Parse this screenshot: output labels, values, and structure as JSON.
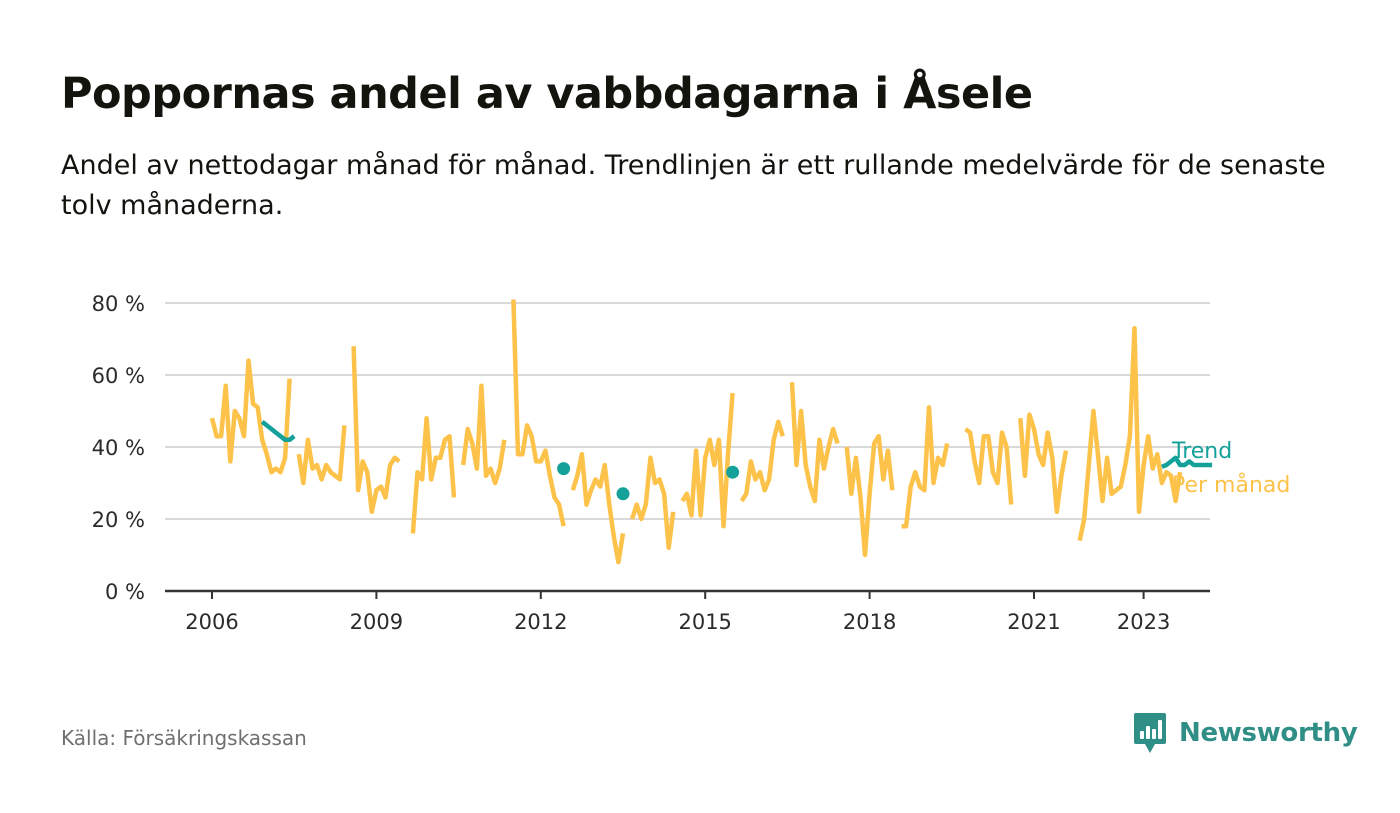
{
  "title": "Poppornas andel av vabbdagarna i Åsele",
  "subtitle": "Andel av nettodagar månad för månad. Trendlinjen är ett rullande medelvärde för de senaste tolv månaderna.",
  "source": "Källa: Försäkringskassan",
  "brand": {
    "name": "Newsworthy",
    "icon": "newsworthy-logo-icon",
    "color": "#2f8f86"
  },
  "chart_data": {
    "type": "line",
    "x_type": "date (year, month)",
    "y_unit": "%",
    "ylim": [
      0,
      80
    ],
    "y_ticks": [
      0,
      20,
      40,
      60,
      80
    ],
    "y_tick_labels": [
      "0 %",
      "20 %",
      "40 %",
      "60 %",
      "80 %"
    ],
    "x_ticks": [
      2006,
      2009,
      2012,
      2015,
      2018,
      2021,
      2023
    ],
    "x_tick_labels": [
      "2006",
      "2009",
      "2012",
      "2015",
      "2018",
      "2021",
      "2023"
    ],
    "grid": "horizontal",
    "legend_placement": "end-of-lines right",
    "series": [
      {
        "name": "Per månad",
        "color": "#fcc24a",
        "start": [
          2006,
          1
        ],
        "values": [
          48,
          43,
          43,
          57,
          36,
          50,
          48,
          43,
          64,
          52,
          51,
          42,
          38,
          33,
          34,
          33,
          37,
          59,
          null,
          38,
          30,
          42,
          34,
          35,
          31,
          35,
          33,
          32,
          31,
          46,
          null,
          68,
          28,
          36,
          33,
          22,
          28,
          29,
          26,
          35,
          37,
          36,
          null,
          null,
          16,
          33,
          31,
          48,
          31,
          37,
          37,
          42,
          43,
          26,
          null,
          35,
          45,
          41,
          34,
          57,
          32,
          34,
          30,
          34,
          42,
          null,
          81,
          38,
          38,
          46,
          43,
          36,
          36,
          39,
          32,
          26,
          24,
          18,
          null,
          28,
          32,
          38,
          24,
          28,
          31,
          29,
          35,
          24,
          15,
          8,
          16,
          null,
          20,
          24,
          20,
          24,
          37,
          30,
          31,
          27,
          12,
          22,
          null,
          25,
          27,
          21,
          39,
          21,
          37,
          42,
          35,
          42,
          18,
          38,
          55,
          null,
          25,
          27,
          36,
          31,
          33,
          28,
          31,
          42,
          47,
          43,
          null,
          58,
          35,
          50,
          35,
          29,
          25,
          42,
          34,
          40,
          45,
          41,
          null,
          40,
          27,
          37,
          26,
          10,
          27,
          41,
          43,
          31,
          39,
          28,
          null,
          18,
          18,
          29,
          33,
          29,
          28,
          51,
          30,
          37,
          35,
          41,
          null,
          null,
          null,
          45,
          44,
          36,
          30,
          43,
          43,
          33,
          30,
          44,
          40,
          24,
          null,
          48,
          32,
          49,
          45,
          38,
          35,
          44,
          37,
          22,
          32,
          39,
          null,
          null,
          14,
          20,
          35,
          50,
          38,
          25,
          37,
          27,
          28,
          29,
          35,
          43,
          73,
          22,
          35,
          43,
          34,
          38,
          30,
          33,
          32,
          25,
          33
        ]
      },
      {
        "name": "Trend",
        "color": "#14a19a",
        "start": [
          2006,
          1
        ],
        "values": [
          null,
          null,
          null,
          null,
          null,
          null,
          null,
          null,
          null,
          null,
          null,
          47,
          46,
          45,
          44,
          43,
          42,
          42,
          43,
          null,
          null,
          null,
          null,
          null,
          null,
          null,
          null,
          null,
          null,
          null,
          null,
          null,
          null,
          null,
          null,
          null,
          null,
          null,
          null,
          null,
          null,
          null,
          null,
          null,
          null,
          null,
          null,
          null,
          null,
          null,
          null,
          null,
          null,
          null,
          null,
          null,
          null,
          null,
          null,
          null,
          null,
          null,
          null,
          null,
          null,
          null,
          null,
          null,
          null,
          null,
          null,
          null,
          null,
          null,
          null,
          null,
          null,
          null,
          null,
          null,
          null,
          null,
          null,
          null,
          null,
          null,
          null,
          null,
          null,
          null,
          null,
          null,
          null,
          null,
          null,
          null,
          null,
          null,
          null,
          null,
          null,
          null,
          null,
          null,
          null,
          null,
          null,
          null,
          null,
          null,
          null,
          null,
          null,
          null,
          null,
          null,
          null,
          null,
          null,
          null,
          null,
          null,
          null,
          null,
          null,
          null,
          null,
          null,
          null,
          null,
          null,
          null,
          null,
          null,
          null,
          null,
          null,
          null,
          null,
          null,
          null,
          null,
          null,
          null,
          null,
          null,
          null,
          null,
          null,
          null,
          null,
          null,
          null,
          null,
          null,
          null,
          null,
          null,
          null,
          null,
          null,
          null,
          null,
          null,
          null,
          null,
          null,
          null,
          null,
          null,
          null,
          null,
          null,
          null,
          null,
          null,
          null,
          null,
          null,
          null,
          null,
          null,
          null,
          null,
          null,
          null,
          null,
          null,
          null,
          null,
          null,
          null,
          null,
          null,
          null,
          null,
          null,
          null,
          null,
          null,
          null,
          null,
          null,
          null,
          null,
          null,
          null,
          null,
          34.5,
          35,
          36,
          37,
          35,
          35,
          36,
          35,
          35,
          35,
          35,
          35
        ],
        "points": [
          {
            "date": [
              2012,
              6
            ],
            "value": 34
          },
          {
            "date": [
              2013,
              7
            ],
            "value": 27
          },
          {
            "date": [
              2015,
              7
            ],
            "value": 33
          }
        ]
      }
    ]
  }
}
